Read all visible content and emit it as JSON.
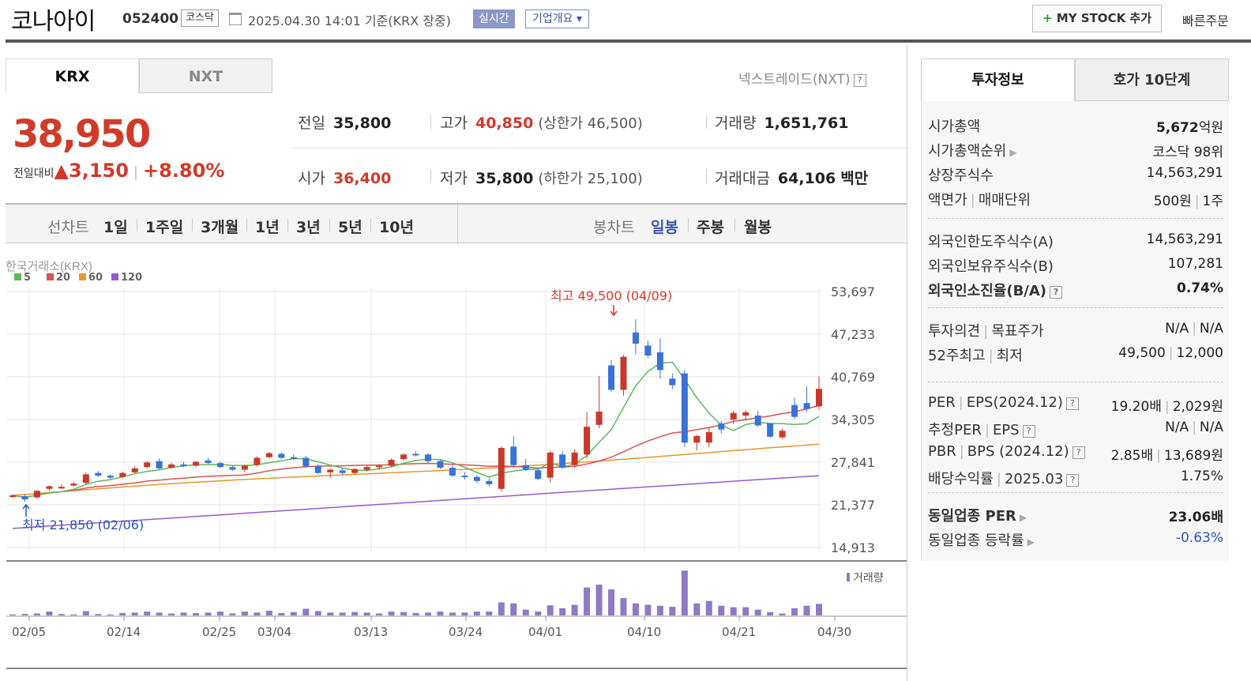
{
  "header": {
    "stock_name": "코나아이",
    "stock_code": "052400",
    "market": "코스닥",
    "datetime": "2025.04.30 14:01",
    "basis": "기준(KRX 장중)",
    "realtime_label": "실시간",
    "company_overview_label": "기업개요 ▾",
    "mystock_label": "MY STOCK 추가",
    "quick_order_label": "빠른주문"
  },
  "market_tabs": {
    "krx": "KRX",
    "nxt": "NXT",
    "nxt_link": "넥스트레이드(NXT)"
  },
  "quote": {
    "price": "38,950",
    "change_label": "전일대비",
    "change_arrow": "▲",
    "change_value": "3,150",
    "change_pct": "+8.80%",
    "prev_close_label": "전일",
    "prev_close": "35,800",
    "high_label": "고가",
    "high": "40,850",
    "upper_limit_label": "(상한가",
    "upper_limit": "46,500",
    "paren_close": ")",
    "volume_label": "거래량",
    "volume": "1,651,761",
    "open_label": "시가",
    "open": "36,400",
    "low_label": "저가",
    "low": "35,800",
    "lower_limit_label": "(하한가",
    "lower_limit": "25,100",
    "turnover_label": "거래대금",
    "turnover": "64,106",
    "turnover_unit": "백만"
  },
  "period_bar": {
    "line_chart_label": "선차트",
    "periods": [
      "1일",
      "1주일",
      "3개월",
      "1년",
      "3년",
      "5년",
      "10년"
    ],
    "candle_label": "봉차트",
    "candle_types": [
      "일봉",
      "주봉",
      "월봉"
    ],
    "selected_candle": "일봉"
  },
  "chart_data": {
    "type": "candlestick",
    "source_label": "한국거래소(KRX)",
    "legend": [
      {
        "name": "5",
        "color": "#5cb85c"
      },
      {
        "name": "20",
        "color": "#d9534f"
      },
      {
        "name": "60",
        "color": "#e8962e"
      },
      {
        "name": "120",
        "color": "#9b59d0"
      }
    ],
    "y_ticks": [
      "53,697",
      "47,233",
      "40,769",
      "34,305",
      "27,841",
      "21,377",
      "14,913"
    ],
    "y_range": [
      14913,
      53697
    ],
    "x_ticks": [
      "02/05",
      "02/14",
      "02/25",
      "03/04",
      "03/13",
      "03/24",
      "04/01",
      "04/10",
      "04/21",
      "04/30"
    ],
    "high_annotation": "최고 49,500 (04/09)",
    "low_annotation": "최저 21,850 (02/06)",
    "volume_label": "거래량",
    "up_color": "#c8392b",
    "down_color": "#3a72d8",
    "candles": [
      [
        22600,
        23000,
        22400,
        22800
      ],
      [
        22700,
        23000,
        21850,
        22200
      ],
      [
        22500,
        23600,
        22300,
        23500
      ],
      [
        23800,
        24300,
        23500,
        24200
      ],
      [
        24000,
        24500,
        23800,
        24100
      ],
      [
        24300,
        24800,
        24100,
        24600
      ],
      [
        24700,
        26300,
        24500,
        26000
      ],
      [
        26200,
        26500,
        25600,
        25800
      ],
      [
        25800,
        26000,
        25300,
        25500
      ],
      [
        25600,
        26400,
        25400,
        26200
      ],
      [
        26300,
        27200,
        26100,
        26900
      ],
      [
        27100,
        28000,
        26900,
        27800
      ],
      [
        28000,
        28400,
        26700,
        26900
      ],
      [
        27000,
        27700,
        26800,
        27500
      ],
      [
        27500,
        27900,
        27100,
        27300
      ],
      [
        27300,
        28000,
        27100,
        27900
      ],
      [
        28100,
        28500,
        27500,
        27700
      ],
      [
        27700,
        27900,
        27000,
        27100
      ],
      [
        27100,
        27300,
        26500,
        26700
      ],
      [
        26700,
        27500,
        26300,
        27300
      ],
      [
        27400,
        28700,
        27200,
        28500
      ],
      [
        28600,
        29400,
        28400,
        29200
      ],
      [
        29100,
        29300,
        28300,
        28500
      ],
      [
        28600,
        29000,
        28200,
        28400
      ],
      [
        28500,
        28800,
        27000,
        27200
      ],
      [
        27300,
        27500,
        26000,
        26200
      ],
      [
        26300,
        26900,
        25400,
        26700
      ],
      [
        26600,
        26900,
        25900,
        26200
      ],
      [
        26200,
        27000,
        26000,
        26800
      ],
      [
        26700,
        27400,
        26400,
        27100
      ],
      [
        27100,
        27500,
        26700,
        27300
      ],
      [
        27300,
        28400,
        27100,
        28200
      ],
      [
        28300,
        29200,
        28100,
        29000
      ],
      [
        29100,
        29500,
        28700,
        28900
      ],
      [
        29000,
        29200,
        27700,
        28000
      ],
      [
        28000,
        28200,
        26800,
        27000
      ],
      [
        27000,
        27300,
        25600,
        25800
      ],
      [
        25800,
        26300,
        25200,
        25600
      ],
      [
        25600,
        25900,
        24700,
        25000
      ],
      [
        25000,
        25400,
        24200,
        24500
      ],
      [
        23800,
        30200,
        23400,
        30000
      ],
      [
        30200,
        31800,
        27000,
        27400
      ],
      [
        27400,
        28300,
        26500,
        26700
      ],
      [
        26600,
        27000,
        25100,
        25300
      ],
      [
        25500,
        29600,
        24800,
        29300
      ],
      [
        29000,
        29500,
        26800,
        27000
      ],
      [
        27400,
        29800,
        27000,
        29300
      ],
      [
        29000,
        35500,
        28400,
        33200
      ],
      [
        33500,
        40900,
        33000,
        35500
      ],
      [
        42500,
        43300,
        38500,
        38800
      ],
      [
        38800,
        44100,
        37900,
        43800
      ],
      [
        47500,
        49500,
        44200,
        45800
      ],
      [
        45500,
        46300,
        43600,
        44000
      ],
      [
        44500,
        46600,
        40500,
        41800
      ],
      [
        40500,
        41300,
        38900,
        39500
      ],
      [
        41300,
        41800,
        30100,
        30800
      ],
      [
        30800,
        32000,
        29600,
        31800
      ],
      [
        30800,
        33100,
        30100,
        32400
      ],
      [
        33700,
        34100,
        32200,
        32800
      ],
      [
        34300,
        35600,
        33600,
        35300
      ],
      [
        34900,
        35700,
        34100,
        35400
      ],
      [
        34900,
        35600,
        33200,
        33400
      ],
      [
        33700,
        33800,
        31500,
        31700
      ],
      [
        31600,
        32900,
        31300,
        32600
      ],
      [
        36500,
        37600,
        34400,
        34700
      ],
      [
        36800,
        39300,
        35500,
        35900
      ],
      [
        36300,
        40850,
        35800,
        38950
      ]
    ],
    "volume_scale": [
      0.02,
      0.03,
      0.04,
      0.08,
      0.03,
      0.02,
      0.09,
      0.03,
      0.02,
      0.05,
      0.06,
      0.08,
      0.06,
      0.04,
      0.06,
      0.05,
      0.06,
      0.08,
      0.04,
      0.08,
      0.06,
      0.1,
      0.05,
      0.07,
      0.14,
      0.09,
      0.06,
      0.06,
      0.07,
      0.06,
      0.04,
      0.08,
      0.07,
      0.05,
      0.06,
      0.08,
      0.06,
      0.06,
      0.08,
      0.08,
      0.27,
      0.25,
      0.12,
      0.08,
      0.21,
      0.15,
      0.22,
      0.58,
      0.64,
      0.54,
      0.36,
      0.25,
      0.22,
      0.2,
      0.18,
      0.93,
      0.25,
      0.3,
      0.2,
      0.17,
      0.17,
      0.12,
      0.07,
      0.04,
      0.15,
      0.2,
      0.24
    ]
  },
  "investment": {
    "tabs": [
      "투자정보",
      "호가 10단계"
    ],
    "rows1": [
      {
        "k": "시가총액",
        "v_num": "5,672",
        "v_unit": "억원"
      },
      {
        "k": "시가총액순위",
        "v": "코스닥 98위"
      },
      {
        "k": "상장주식수",
        "v": "14,563,291"
      },
      {
        "k": "액면가",
        "k2": "매매단위",
        "v": "500원",
        "v2": "1주"
      }
    ],
    "rows2": [
      {
        "k": "외국인한도주식수(A)",
        "v": "14,563,291"
      },
      {
        "k": "외국인보유주식수(B)",
        "v": "107,281"
      },
      {
        "k": "외국인소진율(B/A)",
        "v": "0.74%"
      }
    ],
    "rows3": [
      {
        "k": "투자의견",
        "k2": "목표주가",
        "v": "N/A",
        "v2": "N/A"
      },
      {
        "k": "52주최고",
        "k2": "최저",
        "v": "49,500",
        "v2": "12,000"
      }
    ],
    "rows4": [
      {
        "k": "PER",
        "k2": "EPS(2024.12)",
        "v": "19.20배",
        "v2": "2,029원"
      },
      {
        "k": "추정PER",
        "k2": "EPS",
        "v": "N/A",
        "v2": "N/A"
      },
      {
        "k": "PBR",
        "k2": "BPS (2024.12)",
        "v": "2.85배",
        "v2": "13,689원"
      },
      {
        "k": "배당수익률",
        "k2": "2025.03",
        "v": "1.75%"
      }
    ],
    "rows5": [
      {
        "k": "동일업종 PER",
        "v": "23.06배"
      },
      {
        "k": "동일업종 등락률",
        "v": "-0.63%"
      }
    ]
  }
}
